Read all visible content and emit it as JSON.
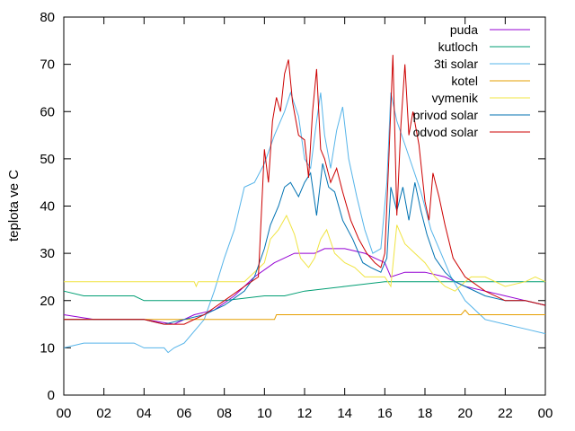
{
  "chart_data": {
    "type": "line",
    "title": "",
    "xlabel": "",
    "ylabel": "teplota ve C",
    "xlim": [
      0,
      24
    ],
    "ylim": [
      0,
      80
    ],
    "x_tick_labels": [
      "00",
      "02",
      "04",
      "06",
      "08",
      "10",
      "12",
      "14",
      "16",
      "18",
      "20",
      "22",
      "00"
    ],
    "y_ticks": [
      0,
      10,
      20,
      30,
      40,
      50,
      60,
      70,
      80
    ],
    "grid": false,
    "legend_position": "top-right",
    "series": [
      {
        "name": "puda",
        "color": "#9400d3",
        "points": [
          [
            0,
            17
          ],
          [
            1.5,
            16
          ],
          [
            4,
            16
          ],
          [
            5.5,
            15
          ],
          [
            6.5,
            17
          ],
          [
            7.5,
            18
          ],
          [
            8.5,
            21
          ],
          [
            9.5,
            25
          ],
          [
            10.5,
            28
          ],
          [
            11.5,
            30
          ],
          [
            12.5,
            30
          ],
          [
            13,
            31
          ],
          [
            14,
            31
          ],
          [
            15,
            30
          ],
          [
            15.5,
            29
          ],
          [
            16,
            28
          ],
          [
            16.3,
            25
          ],
          [
            17,
            26
          ],
          [
            18,
            26
          ],
          [
            19,
            25
          ],
          [
            20,
            23
          ],
          [
            21,
            22
          ],
          [
            22,
            21
          ],
          [
            23,
            20
          ],
          [
            24,
            19
          ]
        ]
      },
      {
        "name": "kutloch",
        "color": "#009e73",
        "points": [
          [
            0,
            22
          ],
          [
            1,
            21
          ],
          [
            3.5,
            21
          ],
          [
            4,
            20
          ],
          [
            6,
            20
          ],
          [
            8,
            20
          ],
          [
            10,
            21
          ],
          [
            11,
            21
          ],
          [
            12,
            22
          ],
          [
            14,
            23
          ],
          [
            16,
            24
          ],
          [
            18,
            24
          ],
          [
            20,
            24
          ],
          [
            22,
            24
          ],
          [
            24,
            24
          ]
        ]
      },
      {
        "name": "3ti solar",
        "color": "#56b4e9",
        "points": [
          [
            0,
            10
          ],
          [
            1,
            11
          ],
          [
            3.5,
            11
          ],
          [
            4,
            10
          ],
          [
            5,
            10
          ],
          [
            5.2,
            9
          ],
          [
            5.5,
            10
          ],
          [
            6,
            11
          ],
          [
            7,
            16
          ],
          [
            7.5,
            22
          ],
          [
            8,
            29
          ],
          [
            8.5,
            35
          ],
          [
            9,
            44
          ],
          [
            9.5,
            45
          ],
          [
            10,
            49
          ],
          [
            10.5,
            55
          ],
          [
            11,
            60
          ],
          [
            11.3,
            64
          ],
          [
            11.7,
            59
          ],
          [
            12,
            50
          ],
          [
            12.3,
            48
          ],
          [
            12.6,
            58
          ],
          [
            12.8,
            64
          ],
          [
            13,
            55
          ],
          [
            13.3,
            48
          ],
          [
            13.6,
            56
          ],
          [
            13.9,
            61
          ],
          [
            14.2,
            50
          ],
          [
            14.6,
            42
          ],
          [
            15,
            35
          ],
          [
            15.4,
            30
          ],
          [
            15.8,
            31
          ],
          [
            16.1,
            45
          ],
          [
            16.3,
            64
          ],
          [
            16.6,
            58
          ],
          [
            17,
            53
          ],
          [
            17.4,
            48
          ],
          [
            17.8,
            43
          ],
          [
            18.3,
            35
          ],
          [
            18.8,
            30
          ],
          [
            19.3,
            25
          ],
          [
            20,
            20
          ],
          [
            21,
            16
          ],
          [
            22,
            15
          ],
          [
            23,
            14
          ],
          [
            24,
            13
          ]
        ]
      },
      {
        "name": "kotel",
        "color": "#e69f00",
        "points": [
          [
            0,
            16
          ],
          [
            6,
            16
          ],
          [
            10.5,
            16
          ],
          [
            10.6,
            17
          ],
          [
            15,
            17
          ],
          [
            19.8,
            17
          ],
          [
            20,
            18
          ],
          [
            20.2,
            17
          ],
          [
            24,
            17
          ]
        ]
      },
      {
        "name": "vymenik",
        "color": "#f0e442",
        "points": [
          [
            0,
            24
          ],
          [
            6.5,
            24
          ],
          [
            6.6,
            23
          ],
          [
            6.7,
            24
          ],
          [
            9,
            24
          ],
          [
            9.5,
            26
          ],
          [
            10,
            28
          ],
          [
            10.3,
            33
          ],
          [
            10.7,
            35
          ],
          [
            11.1,
            38
          ],
          [
            11.5,
            34
          ],
          [
            11.8,
            29
          ],
          [
            12.2,
            27
          ],
          [
            12.5,
            29
          ],
          [
            12.8,
            33
          ],
          [
            13.1,
            35
          ],
          [
            13.5,
            30
          ],
          [
            14,
            28
          ],
          [
            14.5,
            27
          ],
          [
            15,
            25
          ],
          [
            15.5,
            25
          ],
          [
            16,
            25
          ],
          [
            16.3,
            23
          ],
          [
            16.6,
            36
          ],
          [
            17,
            32
          ],
          [
            17.5,
            30
          ],
          [
            18,
            28
          ],
          [
            18.5,
            25
          ],
          [
            19,
            23
          ],
          [
            19.5,
            22
          ],
          [
            20,
            24
          ],
          [
            20.3,
            25
          ],
          [
            21,
            25
          ],
          [
            22,
            23
          ],
          [
            23,
            24
          ],
          [
            23.5,
            25
          ],
          [
            24,
            24
          ]
        ]
      },
      {
        "name": "privod solar",
        "color": "#0072b2",
        "points": [
          [
            0,
            16
          ],
          [
            4,
            16
          ],
          [
            5,
            15
          ],
          [
            6,
            16
          ],
          [
            7,
            17
          ],
          [
            8,
            19
          ],
          [
            9,
            22
          ],
          [
            9.5,
            25
          ],
          [
            10,
            31
          ],
          [
            10.3,
            36
          ],
          [
            10.7,
            40
          ],
          [
            11,
            44
          ],
          [
            11.3,
            45
          ],
          [
            11.7,
            42
          ],
          [
            12,
            45
          ],
          [
            12.3,
            47
          ],
          [
            12.6,
            38
          ],
          [
            12.9,
            49
          ],
          [
            13.2,
            44
          ],
          [
            13.5,
            43
          ],
          [
            13.9,
            37
          ],
          [
            14.4,
            33
          ],
          [
            14.9,
            28
          ],
          [
            15.3,
            27
          ],
          [
            15.8,
            26
          ],
          [
            16.1,
            29
          ],
          [
            16.3,
            44
          ],
          [
            16.6,
            39
          ],
          [
            16.9,
            44
          ],
          [
            17.2,
            37
          ],
          [
            17.5,
            45
          ],
          [
            17.8,
            39
          ],
          [
            18.1,
            34
          ],
          [
            18.5,
            29
          ],
          [
            19,
            26
          ],
          [
            19.5,
            24
          ],
          [
            20,
            23
          ],
          [
            21,
            21
          ],
          [
            22,
            20
          ],
          [
            23,
            20
          ],
          [
            24,
            19
          ]
        ]
      },
      {
        "name": "odvod solar",
        "color": "#cc0000",
        "points": [
          [
            0,
            16
          ],
          [
            4,
            16
          ],
          [
            5,
            15
          ],
          [
            6,
            15
          ],
          [
            7,
            17
          ],
          [
            8,
            20
          ],
          [
            9,
            23
          ],
          [
            9.7,
            25
          ],
          [
            10,
            52
          ],
          [
            10.2,
            45
          ],
          [
            10.4,
            58
          ],
          [
            10.6,
            63
          ],
          [
            10.8,
            60
          ],
          [
            11,
            68
          ],
          [
            11.2,
            71
          ],
          [
            11.4,
            62
          ],
          [
            11.7,
            55
          ],
          [
            12,
            54
          ],
          [
            12.2,
            46
          ],
          [
            12.4,
            60
          ],
          [
            12.6,
            69
          ],
          [
            12.8,
            52
          ],
          [
            13,
            50
          ],
          [
            13.3,
            45
          ],
          [
            13.6,
            48
          ],
          [
            13.9,
            43
          ],
          [
            14.3,
            37
          ],
          [
            14.7,
            33
          ],
          [
            15.1,
            30
          ],
          [
            15.5,
            28
          ],
          [
            15.8,
            27
          ],
          [
            16,
            30
          ],
          [
            16.2,
            50
          ],
          [
            16.4,
            72
          ],
          [
            16.6,
            38
          ],
          [
            16.8,
            57
          ],
          [
            17,
            70
          ],
          [
            17.2,
            55
          ],
          [
            17.4,
            60
          ],
          [
            17.7,
            53
          ],
          [
            18,
            41
          ],
          [
            18.2,
            37
          ],
          [
            18.4,
            47
          ],
          [
            18.7,
            42
          ],
          [
            19,
            36
          ],
          [
            19.4,
            29
          ],
          [
            20,
            25
          ],
          [
            21,
            22
          ],
          [
            22,
            20
          ],
          [
            23,
            20
          ],
          [
            24,
            19
          ]
        ]
      }
    ]
  }
}
